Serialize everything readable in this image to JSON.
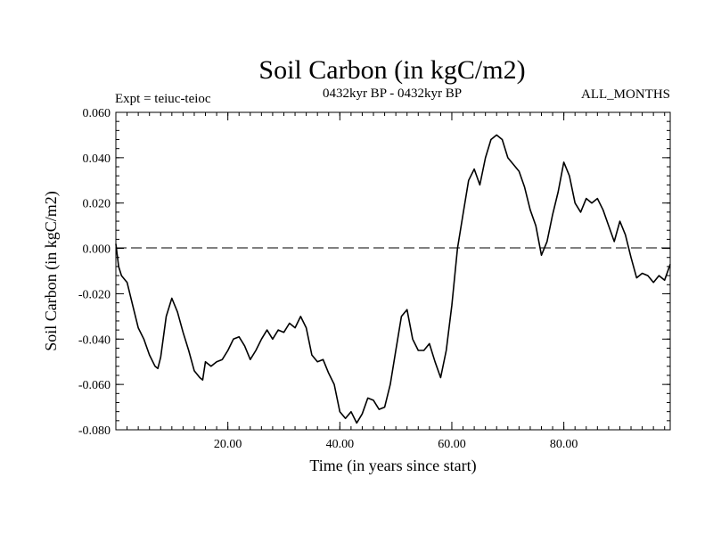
{
  "chart_data": {
    "type": "line",
    "title": "Soil Carbon (in kgC/m2)",
    "subtitle_left": "Expt = teiuc-teioc",
    "subtitle_center": "0432kyr BP - 0432kyr BP",
    "subtitle_right": "ALL_MONTHS",
    "xlabel": "Time (in years since start)",
    "ylabel": "Soil Carbon (in kgC/m2)",
    "xlim": [
      0,
      99
    ],
    "ylim": [
      -0.08,
      0.06
    ],
    "x_ticks": [
      20,
      40,
      60,
      80
    ],
    "x_tick_labels": [
      "20.00",
      "40.00",
      "60.00",
      "80.00"
    ],
    "y_ticks": [
      -0.08,
      -0.06,
      -0.04,
      -0.02,
      0.0,
      0.02,
      0.04,
      0.06
    ],
    "y_tick_labels": [
      "-0.080",
      "-0.060",
      "-0.040",
      "-0.020",
      "0.000",
      "0.020",
      "0.040",
      "0.060"
    ],
    "zero_line": 0.0,
    "series": [
      {
        "name": "Soil Carbon",
        "x": [
          0,
          0.5,
          1,
          2,
          3,
          4,
          5,
          6,
          7,
          7.5,
          8,
          9,
          10,
          11,
          12,
          13,
          14,
          15,
          15.5,
          16,
          17,
          18,
          19,
          20,
          21,
          22,
          23,
          24,
          25,
          26,
          27,
          28,
          29,
          30,
          31,
          32,
          33,
          34,
          35,
          36,
          37,
          38,
          39,
          40,
          41,
          42,
          43,
          44,
          45,
          46,
          47,
          48,
          49,
          50,
          51,
          52,
          53,
          54,
          55,
          56,
          57,
          58,
          59,
          60,
          61,
          62,
          63,
          64,
          65,
          66,
          67,
          68,
          69,
          70,
          71,
          72,
          73,
          74,
          75,
          76,
          77,
          78,
          79,
          80,
          81,
          82,
          83,
          84,
          85,
          86,
          87,
          88,
          89,
          90,
          91,
          92,
          93,
          94,
          95,
          96,
          97,
          98,
          99
        ],
        "values": [
          0.002,
          -0.008,
          -0.012,
          -0.015,
          -0.025,
          -0.035,
          -0.04,
          -0.047,
          -0.052,
          -0.053,
          -0.048,
          -0.03,
          -0.022,
          -0.028,
          -0.037,
          -0.045,
          -0.054,
          -0.057,
          -0.058,
          -0.05,
          -0.052,
          -0.05,
          -0.049,
          -0.045,
          -0.04,
          -0.039,
          -0.043,
          -0.049,
          -0.045,
          -0.04,
          -0.036,
          -0.04,
          -0.036,
          -0.037,
          -0.033,
          -0.035,
          -0.03,
          -0.035,
          -0.047,
          -0.05,
          -0.049,
          -0.055,
          -0.06,
          -0.072,
          -0.075,
          -0.072,
          -0.077,
          -0.073,
          -0.066,
          -0.067,
          -0.071,
          -0.07,
          -0.06,
          -0.045,
          -0.03,
          -0.027,
          -0.04,
          -0.045,
          -0.045,
          -0.042,
          -0.05,
          -0.057,
          -0.045,
          -0.025,
          0.0,
          0.015,
          0.03,
          0.035,
          0.028,
          0.04,
          0.048,
          0.05,
          0.048,
          0.04,
          0.037,
          0.034,
          0.027,
          0.017,
          0.01,
          -0.003,
          0.003,
          0.015,
          0.025,
          0.038,
          0.032,
          0.02,
          0.016,
          0.022,
          0.02,
          0.022,
          0.017,
          0.01,
          0.003,
          0.012,
          0.006,
          -0.004,
          -0.013,
          -0.011,
          -0.012,
          -0.015,
          -0.012,
          -0.014,
          -0.007
        ]
      }
    ]
  }
}
